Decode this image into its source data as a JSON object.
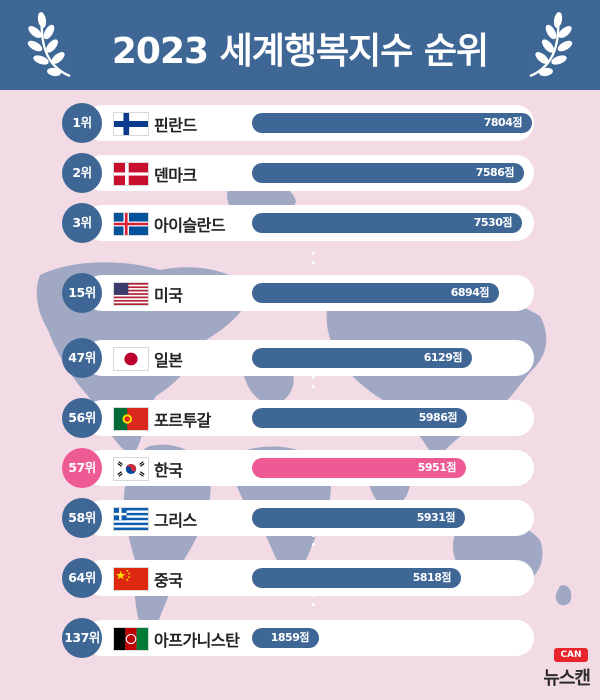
{
  "title": "2023 세계행복지수 순위",
  "chart_data": {
    "type": "bar",
    "title": "2023 세계행복지수 순위",
    "unit": "점",
    "xlim": [
      0,
      8500
    ],
    "categories": [
      "핀란드",
      "덴마크",
      "아이슬란드",
      "미국",
      "일본",
      "포르투갈",
      "한국",
      "그리스",
      "중국",
      "아프가니스탄"
    ],
    "ranks": [
      "1위",
      "2위",
      "3위",
      "15위",
      "47위",
      "56위",
      "57위",
      "58위",
      "64위",
      "137위"
    ],
    "values": [
      7804,
      7586,
      7530,
      6894,
      6129,
      5986,
      5951,
      5931,
      5818,
      1859
    ],
    "value_labels": [
      "7804점",
      "7586점",
      "7530점",
      "6894점",
      "6129점",
      "5986점",
      "5951점",
      "5931점",
      "5818점",
      "1859점"
    ],
    "highlight": "한국",
    "colors": {
      "bar": "#3f6796",
      "highlight": "#ee5a94",
      "background": "#f3dbe5",
      "map": "#a0a8c4"
    }
  },
  "rows": [
    {
      "rank": "1위",
      "country": "핀란드",
      "flag": "finland-flag-icon",
      "value_label": "7804점"
    },
    {
      "rank": "2위",
      "country": "덴마크",
      "flag": "denmark-flag-icon",
      "value_label": "7586점"
    },
    {
      "rank": "3위",
      "country": "아이슬란드",
      "flag": "iceland-flag-icon",
      "value_label": "7530점"
    },
    {
      "rank": "15위",
      "country": "미국",
      "flag": "usa-flag-icon",
      "value_label": "6894점"
    },
    {
      "rank": "47위",
      "country": "일본",
      "flag": "japan-flag-icon",
      "value_label": "6129점"
    },
    {
      "rank": "56위",
      "country": "포르투갈",
      "flag": "portugal-flag-icon",
      "value_label": "5986점"
    },
    {
      "rank": "57위",
      "country": "한국",
      "flag": "korea-flag-icon",
      "value_label": "5951점"
    },
    {
      "rank": "58위",
      "country": "그리스",
      "flag": "greece-flag-icon",
      "value_label": "5931점"
    },
    {
      "rank": "64위",
      "country": "중국",
      "flag": "china-flag-icon",
      "value_label": "5818점"
    },
    {
      "rank": "137위",
      "country": "아프가니스탄",
      "flag": "afghanistan-flag-icon",
      "value_label": "1859점"
    }
  ],
  "logo": {
    "badge": "CAN",
    "text": "뉴스캔"
  }
}
